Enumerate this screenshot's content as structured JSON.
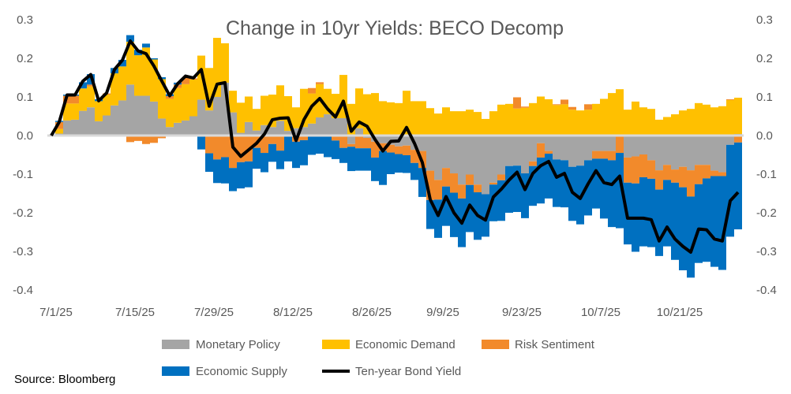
{
  "chart_data": {
    "type": "bar",
    "stacked": true,
    "title": "Change in 10yr Yields: BECO Decomp",
    "source": "Source: Bloomberg",
    "xlabel": "",
    "ylabel": "",
    "ylim": [
      -0.4,
      0.3
    ],
    "y_ticks": [
      "0.3",
      "0.2",
      "0.1",
      "0.0",
      "-0.1",
      "-0.2",
      "-0.3",
      "-0.4"
    ],
    "y_tick_values": [
      0.3,
      0.2,
      0.1,
      0.0,
      -0.1,
      -0.2,
      -0.3,
      -0.4
    ],
    "x_tick_labels": [
      "7/1/25",
      "7/15/25",
      "7/29/25",
      "8/12/25",
      "8/26/25",
      "9/9/25",
      "9/23/25",
      "10/7/25",
      "10/21/25"
    ],
    "x_tick_day_index": [
      0,
      10,
      20,
      30,
      40,
      49,
      59,
      69,
      79
    ],
    "grid": false,
    "legend_position": "bottom",
    "colors": {
      "monetary": "#a5a5a5",
      "demand": "#ffc000",
      "risk": "#f28a2b",
      "supply": "#0070c0",
      "yield": "#000000",
      "zero_line": "#d9d9d9",
      "text": "#595959"
    },
    "series": [
      {
        "key": "monetary",
        "name": "Monetary Policy",
        "values": [
          0,
          0.005,
          0.039,
          0.041,
          0.064,
          0.073,
          0.037,
          0.052,
          0.078,
          0.091,
          0.132,
          0.103,
          0.103,
          0.088,
          0.044,
          0.022,
          0.033,
          0.039,
          0.05,
          0.093,
          0.065,
          0.1,
          0.137,
          0.06,
          0.007,
          0.035,
          0.013,
          0.027,
          0.022,
          0.038,
          0.012,
          0.019,
          0.022,
          0.031,
          0.047,
          0.055,
          0.045,
          0.045,
          -0.022,
          0.019,
          -0.006,
          -0.016,
          -0.02,
          -0.024,
          -0.028,
          -0.026,
          -0.037,
          -0.04,
          -0.091,
          -0.115,
          -0.084,
          -0.098,
          -0.127,
          -0.101,
          -0.127,
          -0.152,
          -0.122,
          -0.101,
          -0.079,
          -0.078,
          -0.098,
          -0.067,
          -0.02,
          -0.04,
          -0.062,
          -0.064,
          -0.081,
          -0.078,
          -0.064,
          -0.04,
          -0.04,
          -0.04,
          -0.003,
          -0.057,
          -0.054,
          -0.049,
          -0.064,
          -0.09,
          -0.076,
          -0.088,
          -0.081,
          -0.09,
          -0.076,
          -0.076,
          -0.091,
          -0.095,
          -0.024,
          0.004
        ]
      },
      {
        "key": "demand",
        "name": "Economic Demand",
        "values": [
          0,
          0.012,
          0.044,
          0.042,
          0.058,
          0.054,
          0.052,
          0.054,
          0.083,
          0.088,
          0.111,
          0.105,
          0.125,
          0.109,
          0.102,
          0.073,
          0.09,
          0.094,
          0.095,
          0.114,
          0.11,
          0.153,
          0.102,
          0.056,
          0.078,
          0.066,
          0.056,
          0.076,
          0.084,
          0.092,
          0.09,
          0.054,
          0.099,
          0.078,
          0.086,
          0.066,
          0.063,
          0.112,
          0.082,
          0.103,
          0.107,
          0.11,
          0.089,
          0.086,
          0.084,
          0.116,
          0.089,
          0.089,
          0.071,
          0.057,
          0.073,
          0.063,
          0.063,
          0.067,
          0.061,
          0.043,
          0.063,
          0.08,
          0.082,
          0.07,
          0.072,
          0.084,
          0.101,
          0.094,
          0.079,
          0.081,
          0.067,
          0.065,
          0.067,
          0.082,
          0.095,
          0.11,
          0.12,
          0.067,
          0.088,
          0.073,
          0.069,
          0.041,
          0.048,
          0.055,
          0.065,
          0.069,
          0.084,
          0.08,
          0.073,
          0.076,
          0.092,
          0.094
        ]
      },
      {
        "key": "risk",
        "name": "Risk Sentiment",
        "values": [
          0,
          0.018,
          0.02,
          0.02,
          0,
          0.005,
          -0.003,
          0.003,
          0,
          -0.003,
          -0.017,
          -0.014,
          -0.022,
          -0.019,
          -0.007,
          0.007,
          0.009,
          0.016,
          0.003,
          0,
          -0.046,
          -0.062,
          -0.056,
          -0.084,
          -0.069,
          -0.067,
          -0.032,
          -0.045,
          -0.022,
          -0.039,
          0,
          -0.016,
          -0.012,
          0.014,
          0.005,
          0,
          -0.013,
          -0.032,
          -0.007,
          -0.033,
          -0.027,
          -0.041,
          -0.02,
          -0.02,
          -0.02,
          -0.025,
          -0.034,
          -0.044,
          -0.076,
          -0.051,
          -0.048,
          -0.05,
          -0.036,
          -0.027,
          -0.02,
          0,
          -0.005,
          -0.015,
          0,
          0.029,
          0.003,
          -0.012,
          -0.037,
          -0.007,
          0.002,
          0.012,
          0.007,
          0,
          0.014,
          -0.02,
          -0.02,
          -0.024,
          -0.042,
          -0.065,
          -0.07,
          -0.059,
          -0.048,
          -0.05,
          -0.039,
          -0.034,
          -0.053,
          -0.068,
          -0.05,
          -0.035,
          -0.014,
          -0.01,
          0.002,
          -0.018
        ]
      },
      {
        "key": "supply",
        "name": "Economic Supply",
        "values": [
          0,
          0.003,
          0.003,
          0.003,
          0.016,
          0.027,
          0.005,
          0,
          0.014,
          0.017,
          0.017,
          0.014,
          0.01,
          0.003,
          0.005,
          0.005,
          0.005,
          -0.002,
          0,
          -0.036,
          -0.048,
          -0.061,
          -0.068,
          -0.06,
          -0.068,
          -0.067,
          -0.054,
          -0.05,
          -0.046,
          -0.048,
          -0.067,
          -0.068,
          -0.065,
          -0.05,
          -0.047,
          -0.056,
          -0.048,
          -0.039,
          -0.063,
          -0.058,
          -0.058,
          -0.061,
          -0.088,
          -0.056,
          -0.048,
          -0.046,
          -0.044,
          -0.075,
          -0.075,
          -0.099,
          -0.102,
          -0.115,
          -0.126,
          -0.122,
          -0.123,
          -0.11,
          -0.095,
          -0.105,
          -0.121,
          -0.12,
          -0.116,
          -0.103,
          -0.119,
          -0.116,
          -0.123,
          -0.122,
          -0.14,
          -0.152,
          -0.143,
          -0.129,
          -0.155,
          -0.173,
          -0.195,
          -0.16,
          -0.177,
          -0.179,
          -0.177,
          -0.172,
          -0.172,
          -0.2,
          -0.215,
          -0.21,
          -0.204,
          -0.216,
          -0.235,
          -0.243,
          -0.238,
          -0.225
        ]
      }
    ],
    "line": {
      "name": "Ten-year Bond Yield",
      "values": [
        0,
        0.035,
        0.105,
        0.105,
        0.141,
        0.158,
        0.09,
        0.11,
        0.171,
        0.195,
        0.245,
        0.219,
        0.212,
        0.18,
        0.141,
        0.103,
        0.134,
        0.154,
        0.149,
        0.171,
        0.076,
        0.133,
        0.137,
        -0.03,
        -0.054,
        -0.037,
        -0.02,
        0.004,
        0.041,
        0.045,
        0.046,
        -0.013,
        0.041,
        0.076,
        0.096,
        0.069,
        0.048,
        0.089,
        0.011,
        0.035,
        0.024,
        -0.01,
        -0.04,
        -0.015,
        -0.014,
        0.021,
        -0.02,
        -0.07,
        -0.166,
        -0.207,
        -0.158,
        -0.2,
        -0.227,
        -0.18,
        -0.207,
        -0.219,
        -0.159,
        -0.139,
        -0.115,
        -0.095,
        -0.14,
        -0.098,
        -0.078,
        -0.067,
        -0.108,
        -0.098,
        -0.147,
        -0.163,
        -0.125,
        -0.091,
        -0.122,
        -0.127,
        -0.105,
        -0.214,
        -0.214,
        -0.214,
        -0.218,
        -0.273,
        -0.237,
        -0.268,
        -0.287,
        -0.302,
        -0.242,
        -0.244,
        -0.268,
        -0.273,
        -0.169,
        -0.147
      ]
    }
  }
}
